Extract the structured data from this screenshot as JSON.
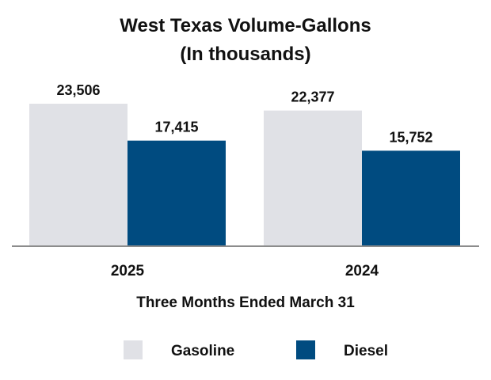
{
  "chart_data": {
    "type": "bar",
    "title": "West Texas Volume-Gallons",
    "subtitle": "(In thousands)",
    "categories": [
      "2025",
      "2024"
    ],
    "series": [
      {
        "name": "Gasoline",
        "values": [
          23506,
          22377
        ],
        "labels": [
          "23,506",
          "22,377"
        ],
        "color": "#e0e1e6"
      },
      {
        "name": "Diesel",
        "values": [
          17415,
          15752
        ],
        "labels": [
          "17,415",
          "15,752"
        ],
        "color": "#004b80"
      }
    ],
    "xlabel": "Three Months Ended March 31",
    "ylabel": "",
    "ylim": [
      0,
      25000
    ],
    "grid": false,
    "legend": "bottom-center",
    "axis_color": "#8c8c8c"
  }
}
